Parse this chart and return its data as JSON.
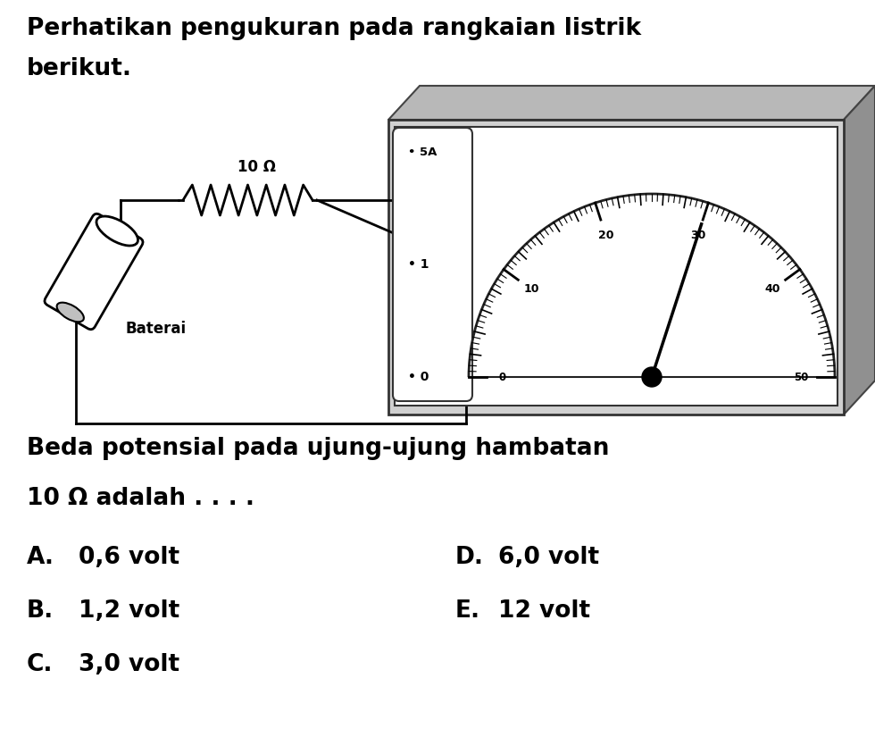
{
  "title_line1": "Perhatikan pengukuran pada rangkaian listrik",
  "title_line2": "berikut.",
  "question_line1": "Beda potensial pada ujung-ujung hambatan",
  "question_line2": "10 Ω adalah . . . .",
  "options": [
    [
      "A.",
      "0,6 volt",
      "D.",
      "6,0 volt"
    ],
    [
      "B.",
      "1,2 volt",
      "E.",
      "12 volt"
    ],
    [
      "C.",
      "3,0 volt",
      "",
      ""
    ]
  ],
  "resistor_label": "10 Ω",
  "battery_label": "Baterai",
  "terminal_5A": "• 5A",
  "terminal_1": "• 1",
  "terminal_0": "• 0",
  "meter_ticks": [
    0,
    10,
    20,
    30,
    40,
    50
  ],
  "needle_reading": 30,
  "bg_color": "#ffffff",
  "text_color": "#000000"
}
